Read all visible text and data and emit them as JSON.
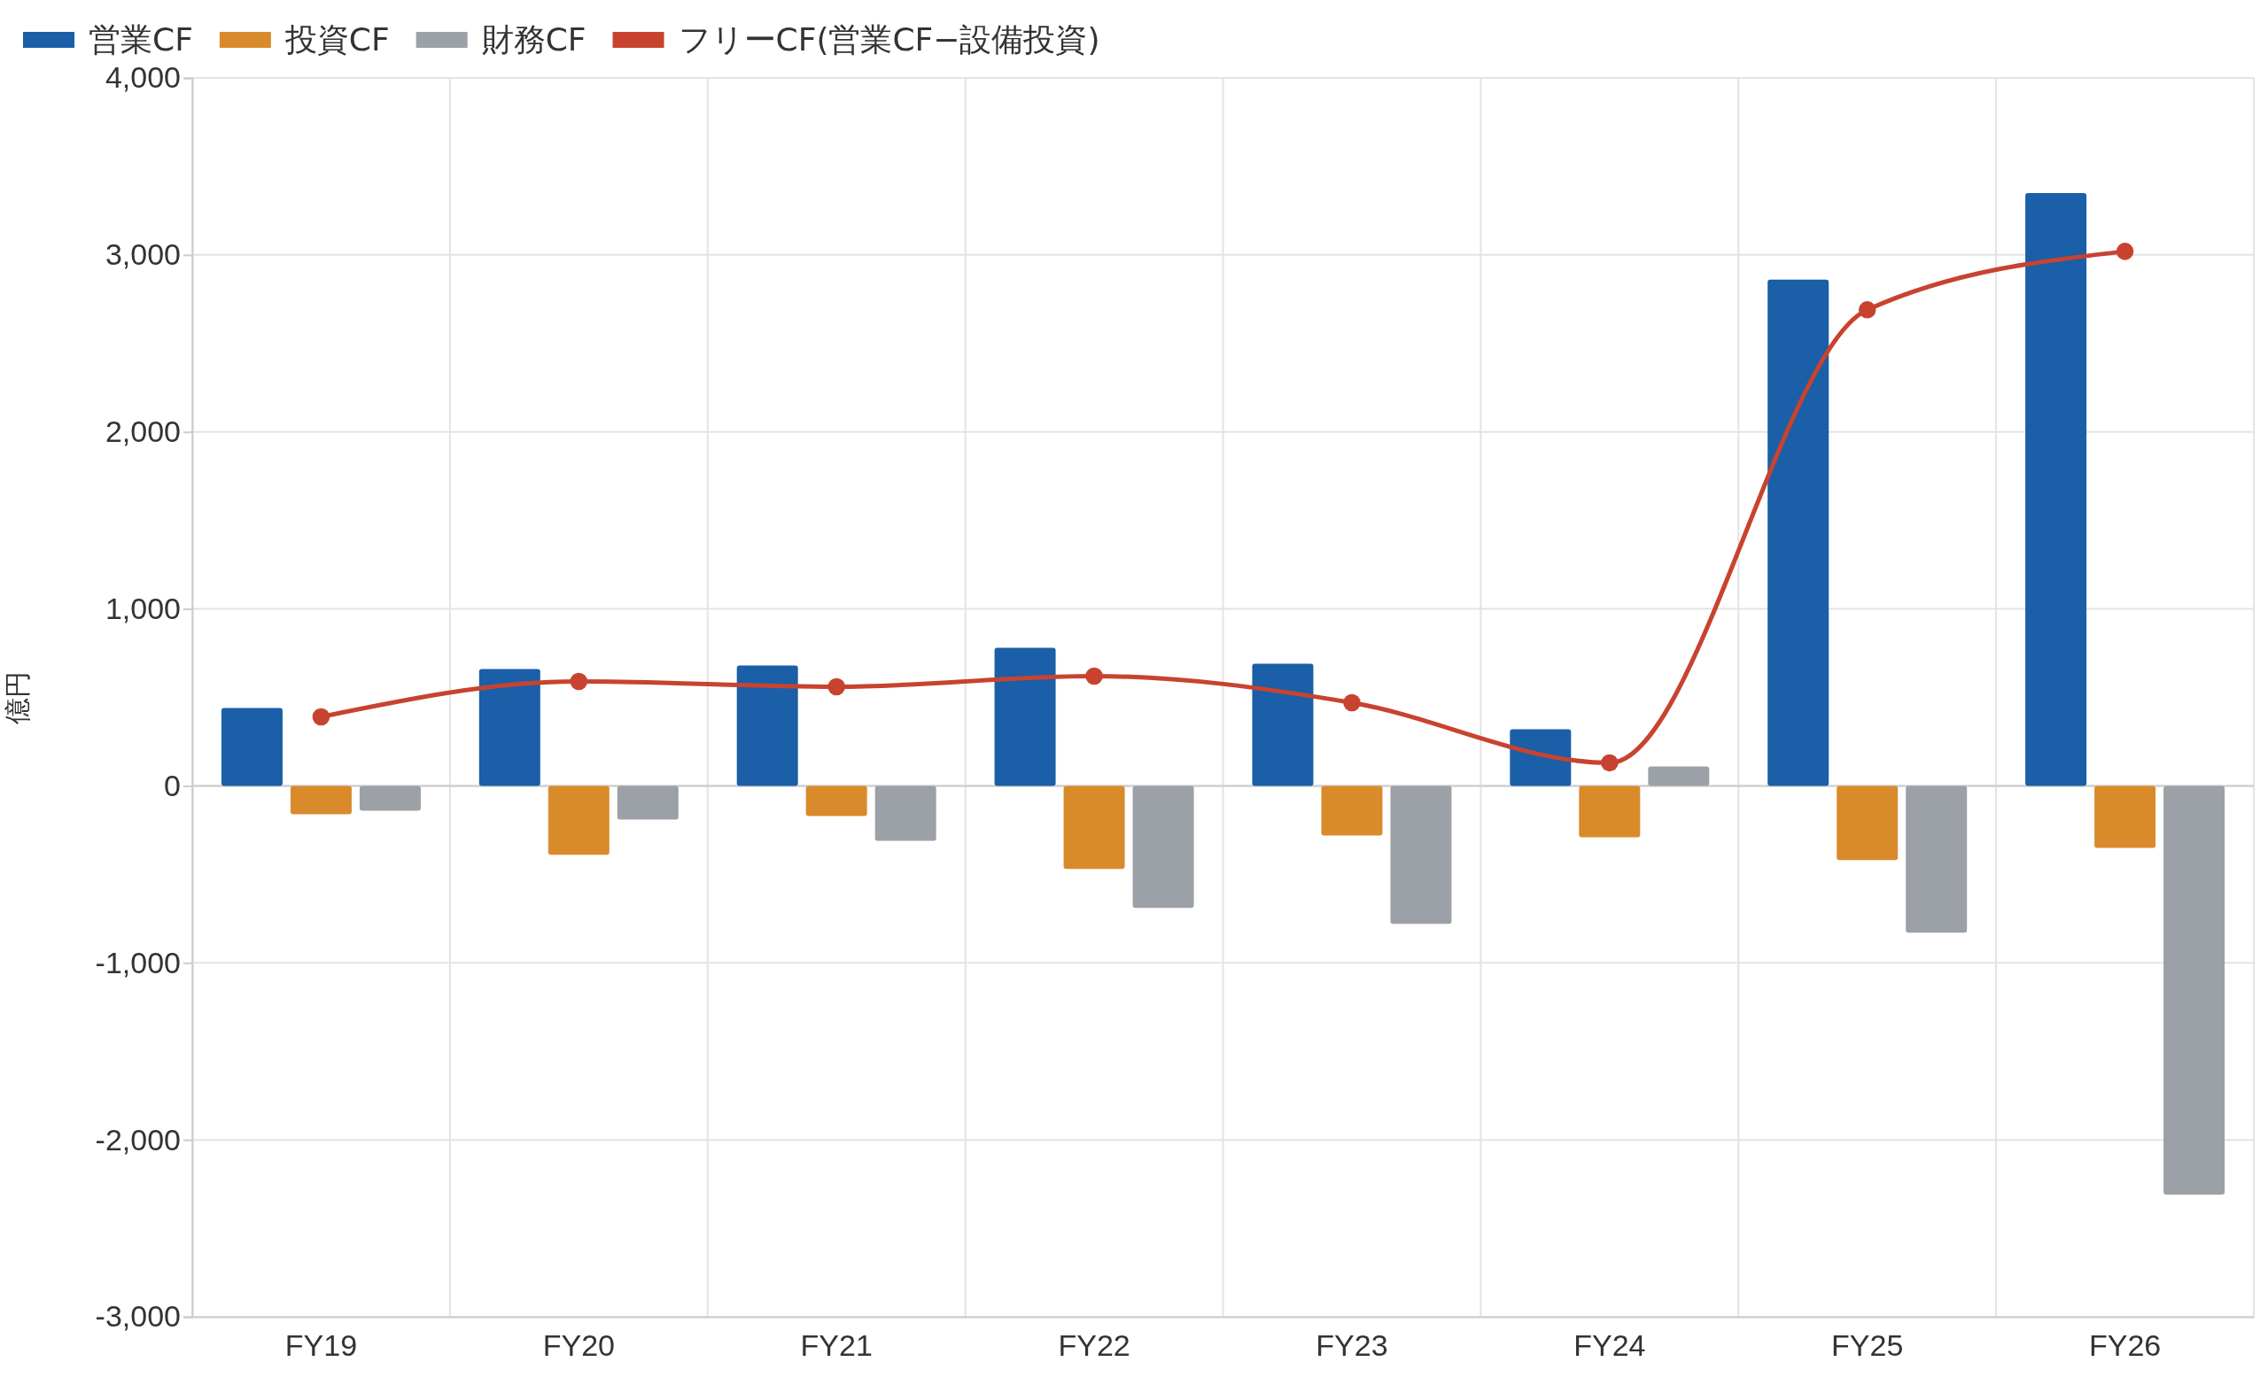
{
  "chart_data": {
    "type": "bar",
    "ylabel": "億円",
    "categories": [
      "FY19",
      "FY20",
      "FY21",
      "FY22",
      "FY23",
      "FY24",
      "FY25",
      "FY26"
    ],
    "series": [
      {
        "name": "営業CF",
        "color": "#1a5fa8",
        "values": [
          440,
          660,
          680,
          780,
          690,
          320,
          2860,
          3350
        ]
      },
      {
        "name": "投資CF",
        "color": "#d98b2b",
        "values": [
          -160,
          -390,
          -170,
          -470,
          -280,
          -290,
          -420,
          -350
        ]
      },
      {
        "name": "財務CF",
        "color": "#9ca1a7",
        "values": [
          -140,
          -190,
          -310,
          -690,
          -780,
          110,
          -830,
          -2310
        ]
      },
      {
        "name": "フリーCF(営業CF−設備投資)",
        "color": "#c8432f",
        "type": "line",
        "marker": "circle",
        "values": [
          390,
          590,
          560,
          620,
          470,
          130,
          2690,
          3020
        ]
      }
    ],
    "ylim": [
      -3000,
      4000
    ],
    "yticks": [
      {
        "value": -3000,
        "label": "-3,000"
      },
      {
        "value": -2000,
        "label": "-2,000"
      },
      {
        "value": -1000,
        "label": "-1,000"
      },
      0,
      {
        "value": 1000,
        "label": "1,000"
      },
      {
        "value": 2000,
        "label": "2,000"
      },
      {
        "value": 3000,
        "label": "3,000"
      },
      {
        "value": 4000,
        "label": "4,000"
      }
    ],
    "grid": true,
    "legend": "top left"
  }
}
